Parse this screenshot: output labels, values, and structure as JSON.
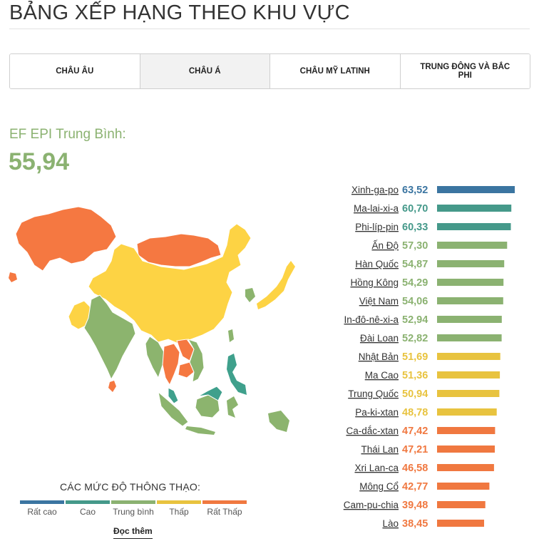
{
  "page": {
    "title": "BẢNG XẾP HẠNG THEO KHU VỰC"
  },
  "tabs": [
    {
      "label": "CHÂU ÂU",
      "active": false
    },
    {
      "label": "CHÂU Á",
      "active": true
    },
    {
      "label": "CHÂU MỸ LATINH",
      "active": false
    },
    {
      "label": "TRUNG ĐÔNG VÀ BẮC PHI",
      "active": false
    }
  ],
  "average": {
    "label": "EF EPI Trung Bình:",
    "value": "55,94"
  },
  "colors": {
    "very_high": "#3b75a1",
    "high": "#45998a",
    "moderate": "#8bb271",
    "low": "#e8c33f",
    "very_low": "#f07840",
    "map_moderate": "#8cb46e",
    "map_low": "#fdd344",
    "map_very_low": "#f57841",
    "map_high": "#3fa08c"
  },
  "chart_data": {
    "type": "bar",
    "orientation": "horizontal",
    "categories": [
      "Xinh-ga-po",
      "Ma-lai-xi-a",
      "Phi-líp-pin",
      "Ấn Độ",
      "Hàn Quốc",
      "Hồng Kông",
      "Việt Nam",
      "In-đô-nê-xi-a",
      "Đài Loan",
      "Nhật Bản",
      "Ma Cao",
      "Trung Quốc",
      "Pa-ki-xtan",
      "Ca-dắc-xtan",
      "Thái Lan",
      "Xri Lan-ca",
      "Mông Cổ",
      "Cam-pu-chia",
      "Lào"
    ],
    "values": [
      63.52,
      60.7,
      60.33,
      57.3,
      54.87,
      54.29,
      54.06,
      52.94,
      52.82,
      51.69,
      51.36,
      50.94,
      48.78,
      47.42,
      47.21,
      46.58,
      42.77,
      39.48,
      38.45
    ],
    "value_labels": [
      "63,52",
      "60,70",
      "60,33",
      "57,30",
      "54,87",
      "54,29",
      "54,06",
      "52,94",
      "52,82",
      "51,69",
      "51,36",
      "50,94",
      "48,78",
      "47,42",
      "47,21",
      "46,58",
      "42,77",
      "39,48",
      "38,45"
    ],
    "levels": [
      "very_high",
      "high",
      "high",
      "moderate",
      "moderate",
      "moderate",
      "moderate",
      "moderate",
      "moderate",
      "low",
      "low",
      "low",
      "low",
      "very_low",
      "very_low",
      "very_low",
      "very_low",
      "very_low",
      "very_low"
    ],
    "title": "",
    "xlabel": "",
    "ylabel": "",
    "xlim": [
      0,
      65
    ]
  },
  "legend": {
    "title": "CÁC MỨC ĐỘ THÔNG THẠO:",
    "items": [
      {
        "label": "Rất cao",
        "color": "#3b75a1"
      },
      {
        "label": "Cao",
        "color": "#45998a"
      },
      {
        "label": "Trung bình",
        "color": "#8bb271"
      },
      {
        "label": "Thấp",
        "color": "#e8c33f"
      },
      {
        "label": "Rất Thấp",
        "color": "#f07840"
      }
    ]
  },
  "read_more": "Đọc thêm"
}
